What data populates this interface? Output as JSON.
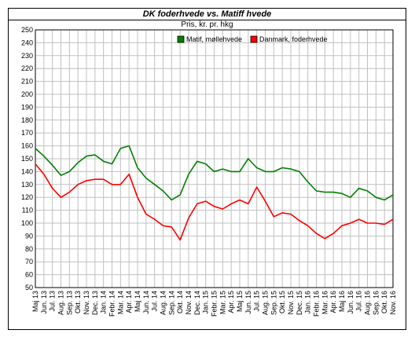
{
  "chart_data": {
    "type": "line",
    "title": "DK foderhvede vs. Matiff hvede",
    "subtitle": "Pris, kr. pr. hkg",
    "ylim": [
      50,
      250
    ],
    "ytick_step": 10,
    "grid": true,
    "legend_placement": "top-center",
    "categories": [
      "Maj 13",
      "Jun. 13",
      "Jul. 13",
      "Aug. 13",
      "Sep. 13",
      "Okt. 13",
      "Nov. 13",
      "Dec. 13",
      "Jan. 14",
      "Febr. 14",
      "Mar. 14",
      "Apr. 14",
      "Maj 14",
      "Jun. 14",
      "Jul. 14",
      "Aug. 14",
      "Sep. 14",
      "Okt. 14",
      "Nov. 14",
      "Dec. 14",
      "Jan. 15",
      "Febr. 15",
      "Mar. 15",
      "Apr. 15",
      "Maj 15",
      "Jun. 15",
      "Jul. 15",
      "Aug. 15",
      "Sep. 15",
      "Okt. 15",
      "Nov. 15",
      "Dec. 15",
      "Jan. 16",
      "Febr. 16",
      "Mar. 16",
      "Apr. 16",
      "Maj 16",
      "Jun. 16",
      "Jul. 16",
      "Aug. 16",
      "Sep. 16",
      "Okt. 16",
      "Nov. 16"
    ],
    "series": [
      {
        "name": "Matif, møllehvede",
        "color": "#008000",
        "values": [
          158,
          152,
          145,
          137,
          140,
          147,
          152,
          153,
          148,
          146,
          158,
          160,
          143,
          135,
          130,
          125,
          118,
          122,
          138,
          148,
          146,
          140,
          142,
          140,
          140,
          150,
          143,
          140,
          140,
          143,
          142,
          140,
          132,
          125,
          124,
          124,
          123,
          120,
          127,
          125,
          120,
          118,
          122
        ]
      },
      {
        "name": "Danmark, foderhvede",
        "color": "#ff0000",
        "values": [
          146,
          138,
          127,
          120,
          124,
          130,
          133,
          134,
          134,
          130,
          130,
          138,
          120,
          107,
          103,
          98,
          97,
          87,
          104,
          115,
          117,
          113,
          111,
          115,
          118,
          115,
          128,
          117,
          105,
          108,
          107,
          102,
          98,
          92,
          88,
          92,
          98,
          100,
          103,
          100,
          100,
          99,
          103
        ]
      }
    ]
  }
}
